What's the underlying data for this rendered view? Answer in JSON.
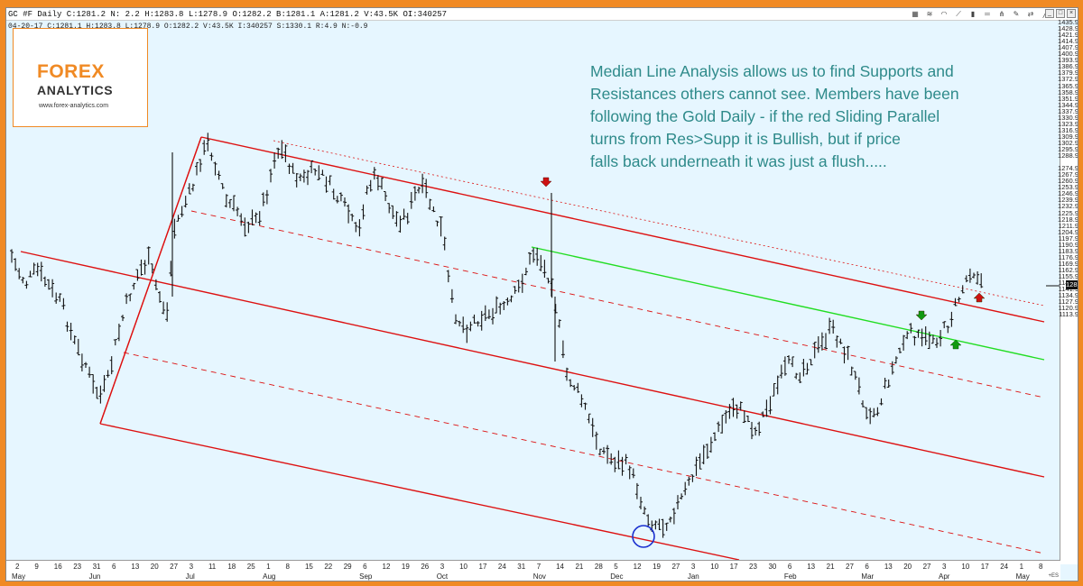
{
  "title_bar": {
    "quote": "GC #F Daily  C:1281.2  N:  2.2  H:1283.8  L:1278.9  O:1282.2  B:1281.1  A:1281.2  V:43.5K  OI:340257"
  },
  "info_bar": {
    "text": "04-20-17  C:1281.1  H:1283.8  L:1278.9  O:1282.2  V:43.5K  I:340257  S:1330.1  R:4.9  N:-0.9"
  },
  "toolbar": {
    "icons": [
      "chart-icon",
      "wave-icon",
      "arc-icon",
      "fan-icon",
      "marker-icon",
      "ruler-icon",
      "pitchfork-icon",
      "pencil-icon",
      "arrows-icon",
      "trendline-icon"
    ]
  },
  "logo": {
    "line1": "FOREX",
    "line2": "ANALYTICS",
    "site": "www.forex-analytics.com"
  },
  "annotation": {
    "lines": [
      "Median Line Analysis allows us to find Supports and",
      "Resistances others cannot see. Members have been",
      "following the Gold Daily - if the  red Sliding Parallel",
      "turns from Res>Supp it is Bullish, but if price",
      "falls back underneath it was just a flush....."
    ]
  },
  "price_axis": {
    "labels": [
      "1435.9",
      "1428.9",
      "1421.9",
      "1414.9",
      "1407.9",
      "1400.9",
      "1393.9",
      "1386.9",
      "1379.9",
      "1372.9",
      "1365.9",
      "1358.9",
      "1351.9",
      "1344.9",
      "1337.9",
      "1330.9",
      "1323.9",
      "1316.9",
      "1309.9",
      "1302.9",
      "1295.9",
      "1288.9",
      "1281.2",
      "1274.9",
      "1267.9",
      "1260.9",
      "1253.9",
      "1246.9",
      "1239.9",
      "1232.9",
      "1225.9",
      "1218.9",
      "1211.9",
      "1204.9",
      "1197.9",
      "1190.9",
      "1183.9",
      "1176.9",
      "1169.9",
      "1162.9",
      "1155.9",
      "1148.9",
      "1141.9",
      "1134.9",
      "1127.9",
      "1120.9",
      "1113.9"
    ],
    "current_price": "1281.2"
  },
  "time_axis": {
    "days": [
      "2",
      "9",
      "16",
      "23",
      "31",
      "6",
      "13",
      "20",
      "27",
      "3",
      "11",
      "18",
      "25",
      "1",
      "8",
      "15",
      "22",
      "29",
      "6",
      "12",
      "19",
      "26",
      "3",
      "10",
      "17",
      "24",
      "31",
      "7",
      "14",
      "21",
      "28",
      "5",
      "12",
      "19",
      "27",
      "3",
      "10",
      "17",
      "23",
      "30",
      "6",
      "13",
      "21",
      "27",
      "6",
      "13",
      "20",
      "27",
      "3",
      "10",
      "17",
      "24",
      "1",
      "8"
    ],
    "months": [
      "May",
      "Jun",
      "Jul",
      "Aug",
      "Sep",
      "Oct",
      "Nov",
      "Dec",
      "Jan",
      "Feb",
      "Mar",
      "Apr",
      "May"
    ],
    "suffix": "+ES"
  },
  "colors": {
    "background": "#e6f6ff",
    "frame": "#f08a24",
    "fork": "#dd1111",
    "sliding_parallel": "#22dd22",
    "annotation_text": "#2e8a8a",
    "down_arrow": "#cc1111",
    "up_arrow": "#119911"
  }
}
